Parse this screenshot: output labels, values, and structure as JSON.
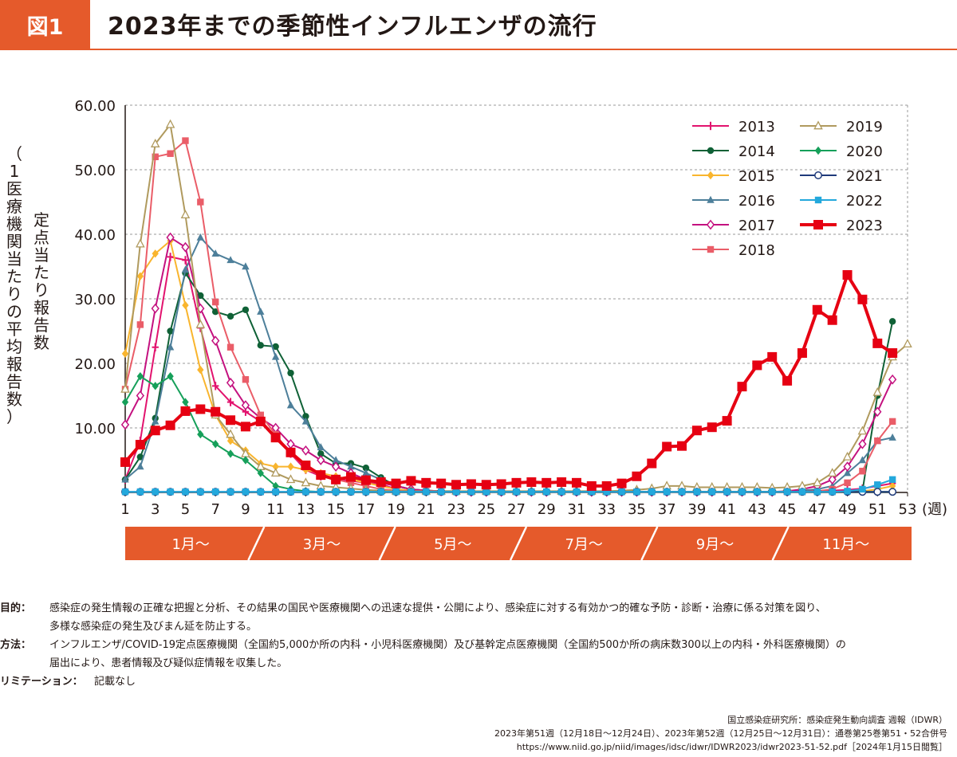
{
  "header": {
    "badge": "図1",
    "title": "2023年までの季節性インフルエンザの流行"
  },
  "chart_data": {
    "type": "line",
    "ylabel_main": "定点当たり報告数",
    "ylabel_sub": "（1医療機関当たりの平均報告数）",
    "x_unit": "(週)",
    "x_ticks": [
      "1",
      "3",
      "5",
      "7",
      "9",
      "11",
      "13",
      "15",
      "17",
      "19",
      "21",
      "23",
      "25",
      "27",
      "29",
      "31",
      "33",
      "35",
      "37",
      "39",
      "41",
      "43",
      "45",
      "47",
      "49",
      "51",
      "53"
    ],
    "y_ticks": [
      "10.00",
      "20.00",
      "30.00",
      "40.00",
      "50.00",
      "60.00"
    ],
    "ylim": [
      0,
      60
    ],
    "xlim": [
      1,
      53
    ],
    "grid": "horizontal dashed",
    "legend": "top-right",
    "months": [
      "1月〜",
      "3月〜",
      "5月〜",
      "7月〜",
      "9月〜",
      "11月〜"
    ],
    "series": [
      {
        "name": "2013",
        "color": "#e2136e",
        "marker": "plus",
        "values": [
          2,
          8,
          22.5,
          36.5,
          36,
          25.5,
          16.5,
          14,
          12.5,
          11,
          8.5,
          6,
          3.5,
          2.5,
          2,
          1.8,
          1.5,
          1.3,
          0.5,
          0.3,
          0.2,
          0.1,
          0.1,
          0.1,
          0.1,
          0.1,
          0.1,
          0.1,
          0.1,
          0.1,
          0.1,
          0.1,
          0.1,
          0.1,
          0.1,
          0.1,
          0.1,
          0.1,
          0.1,
          0.1,
          0.1,
          0.1,
          0.1,
          0.1,
          0.1,
          0.2,
          0.2,
          0.3,
          0.4,
          0.6,
          1,
          1.4
        ]
      },
      {
        "name": "2014",
        "color": "#0f6136",
        "marker": "circle",
        "values": [
          2,
          5.5,
          11.5,
          25,
          34,
          30.5,
          28,
          27.3,
          28.3,
          22.8,
          22.6,
          18.5,
          11.8,
          6,
          4.5,
          4.5,
          3.8,
          2.3,
          1,
          0.5,
          0.3,
          0.2,
          0.1,
          0.1,
          0.1,
          0.1,
          0.1,
          0.1,
          0.1,
          0.1,
          0.1,
          0.1,
          0.1,
          0.1,
          0.1,
          0.1,
          0.1,
          0.1,
          0.1,
          0.1,
          0.1,
          0.1,
          0.1,
          0.1,
          0.1,
          0.1,
          0.1,
          0.1,
          0.1,
          0.2,
          15,
          26.5
        ]
      },
      {
        "name": "2015",
        "color": "#f9b52e",
        "marker": "diamond",
        "values": [
          21.5,
          33.5,
          37,
          39,
          29,
          19,
          12,
          8,
          6.5,
          4.5,
          4,
          4,
          3.5,
          3,
          2.5,
          2,
          1.5,
          1,
          0.5,
          0.3,
          0.2,
          0.1,
          0.1,
          0.1,
          0.1,
          0.1,
          0.1,
          0.1,
          0.1,
          0.1,
          0.1,
          0.1,
          0.1,
          0.1,
          0.1,
          0.1,
          0.1,
          0.1,
          0.1,
          0.1,
          0.1,
          0.1,
          0.1,
          0.1,
          0.1,
          0.1,
          0.1,
          0.1,
          0.1,
          0.2,
          0.5,
          1
        ]
      },
      {
        "name": "2016",
        "color": "#4d7f9a",
        "marker": "triangle",
        "values": [
          2,
          4,
          11,
          22.5,
          34.5,
          39.5,
          37,
          36,
          35,
          28,
          21,
          13.5,
          11,
          7,
          5,
          4,
          3,
          2,
          1,
          0.5,
          0.3,
          0.2,
          0.2,
          0.1,
          0.1,
          0.1,
          0.1,
          0.1,
          0.1,
          0.1,
          0.1,
          0.1,
          0.1,
          0.1,
          0.1,
          0.1,
          0.1,
          0.1,
          0.1,
          0.1,
          0.1,
          0.1,
          0.1,
          0.1,
          0.1,
          0.3,
          0.5,
          1,
          3,
          5,
          8,
          8.5
        ]
      },
      {
        "name": "2017",
        "color": "#c4117f",
        "marker": "diamond-open",
        "values": [
          10.5,
          15,
          28.5,
          39.5,
          38,
          28.5,
          23.5,
          17,
          13.5,
          11.5,
          10,
          7.5,
          6.5,
          5,
          4,
          3,
          2,
          1.5,
          1,
          0.5,
          0.3,
          0.2,
          0.1,
          0.1,
          0.1,
          0.1,
          0.1,
          0.1,
          0.1,
          0.1,
          0.1,
          0.1,
          0.1,
          0.1,
          0.1,
          0.1,
          0.1,
          0.1,
          0.1,
          0.1,
          0.1,
          0.1,
          0.1,
          0.1,
          0.2,
          0.5,
          1,
          2,
          4,
          7.5,
          12.5,
          17.5
        ]
      },
      {
        "name": "2018",
        "color": "#ea5d68",
        "marker": "square",
        "values": [
          16,
          26,
          52,
          52.5,
          54.5,
          45,
          29.5,
          22.5,
          17.5,
          12,
          9,
          6,
          4,
          2.5,
          2,
          1.5,
          1,
          0.5,
          0.3,
          0.2,
          0.2,
          0.1,
          0.1,
          0.1,
          0.1,
          0.1,
          0.1,
          0.1,
          0.1,
          0.1,
          0.1,
          0.1,
          0.1,
          0.1,
          0.1,
          0.1,
          0.1,
          0.1,
          0.1,
          0.1,
          0.1,
          0.1,
          0.1,
          0.1,
          0.1,
          0.1,
          0.2,
          0.5,
          1.5,
          3.3,
          8,
          11
        ]
      },
      {
        "name": "2019",
        "color": "#b09a5e",
        "marker": "triangle-open",
        "values": [
          16,
          38.5,
          54,
          57,
          43,
          26,
          12,
          9,
          6,
          4,
          3,
          2,
          1.5,
          1,
          0.8,
          0.6,
          0.4,
          0.3,
          0.2,
          0.2,
          0.2,
          0.2,
          0.2,
          0.2,
          0.2,
          0.2,
          0.2,
          0.2,
          0.2,
          0.2,
          0.2,
          0.2,
          0.2,
          0.3,
          0.4,
          0.6,
          1,
          1,
          0.8,
          0.8,
          0.8,
          0.8,
          0.8,
          0.7,
          0.8,
          1,
          1.5,
          3,
          5.5,
          9.5,
          15.5,
          21,
          23
        ]
      },
      {
        "name": "2020",
        "color": "#16a05a",
        "marker": "diamond",
        "values": [
          14,
          18,
          16.5,
          18,
          14,
          9,
          7.5,
          6,
          5,
          3,
          1,
          0.5,
          0.2,
          0.1,
          0.1,
          0.1,
          0.1,
          0.1,
          0.1,
          0.1,
          0.1,
          0.1,
          0.1,
          0.1,
          0.1,
          0.1,
          0.1,
          0.1,
          0.1,
          0.1,
          0.1,
          0.1,
          0.1,
          0.1,
          0.1,
          0.1,
          0.1,
          0.1,
          0.1,
          0.1,
          0.1,
          0.1,
          0.1,
          0.1,
          0.1,
          0.1,
          0.1,
          0.1,
          0.1,
          0.1,
          0.1,
          0.1
        ]
      },
      {
        "name": "2021",
        "color": "#1f3a7a",
        "marker": "circle-open",
        "values": [
          0.1,
          0.1,
          0.1,
          0.1,
          0.1,
          0.1,
          0.1,
          0.1,
          0.1,
          0.1,
          0.1,
          0.1,
          0.1,
          0.1,
          0.1,
          0.1,
          0.1,
          0.1,
          0.1,
          0.1,
          0.1,
          0.1,
          0.1,
          0.1,
          0.1,
          0.1,
          0.1,
          0.1,
          0.1,
          0.1,
          0.1,
          0.1,
          0.1,
          0.1,
          0.1,
          0.1,
          0.1,
          0.1,
          0.1,
          0.1,
          0.1,
          0.1,
          0.1,
          0.1,
          0.1,
          0.1,
          0.1,
          0.1,
          0.1,
          0.1,
          0.1,
          0.1
        ]
      },
      {
        "name": "2022",
        "color": "#23a8dc",
        "marker": "square",
        "values": [
          0.1,
          0.1,
          0.1,
          0.1,
          0.1,
          0.1,
          0.1,
          0.1,
          0.1,
          0.1,
          0.1,
          0.1,
          0.1,
          0.1,
          0.1,
          0.1,
          0.1,
          0.1,
          0.1,
          0.1,
          0.1,
          0.1,
          0.1,
          0.1,
          0.1,
          0.1,
          0.1,
          0.1,
          0.1,
          0.1,
          0.1,
          0.1,
          0.1,
          0.1,
          0.1,
          0.1,
          0.1,
          0.1,
          0.1,
          0.1,
          0.1,
          0.1,
          0.1,
          0.1,
          0.1,
          0.1,
          0.1,
          0.1,
          0.2,
          0.5,
          1.2,
          2
        ]
      },
      {
        "name": "2023",
        "color": "#e60012",
        "marker": "square-bold",
        "values": [
          4.7,
          7.4,
          9.6,
          10.4,
          12.6,
          12.9,
          12.5,
          11.2,
          10.2,
          11,
          8.5,
          6.2,
          4.2,
          2.7,
          2,
          2.4,
          1.9,
          1.6,
          1.4,
          1.8,
          1.5,
          1.4,
          1.2,
          1.3,
          1.2,
          1.3,
          1.5,
          1.6,
          1.5,
          1.6,
          1.5,
          1,
          1,
          1.4,
          2.5,
          4.5,
          7.1,
          7.2,
          9.6,
          10.1,
          11.1,
          16.4,
          19.7,
          21,
          17.3,
          21.6,
          28.3,
          26.7,
          33.7,
          29.9,
          23.1,
          21.6
        ]
      }
    ]
  },
  "notes": {
    "purpose_label": "目的：",
    "purpose_text_1": "感染症の発生情報の正確な把握と分析、その結果の国民や医療機関への迅速な提供・公開により、感染症に対する有効かつ的確な予防・診断・治療に係る対策を図り、",
    "purpose_text_2": "多様な感染症の発生及びまん延を防止する。",
    "method_label": "方法：",
    "method_text_1": "インフルエンザ/COVID-19定点医療機関（全国約5,000か所の内科・小児科医療機関）及び基幹定点医療機関（全国約500か所の病床数300以上の内科・外科医療機関）の",
    "method_text_2": "届出により、患者情報及び疑似症情報を収集した。",
    "limitation_label": "リミテーション：",
    "limitation_text": "記載なし"
  },
  "source": {
    "line1": "国立感染症研究所：感染症発生動向調査 週報（IDWR）",
    "line2": "2023年第51週（12月18日〜12月24日）、2023年第52週（12月25日〜12月31日）：通巻第25巻第51・52合併号",
    "line3": "https://www.niid.go.jp/niid/images/idsc/idwr/IDWR2023/idwr2023-51-52.pdf［2024年1月15日閲覧］"
  }
}
